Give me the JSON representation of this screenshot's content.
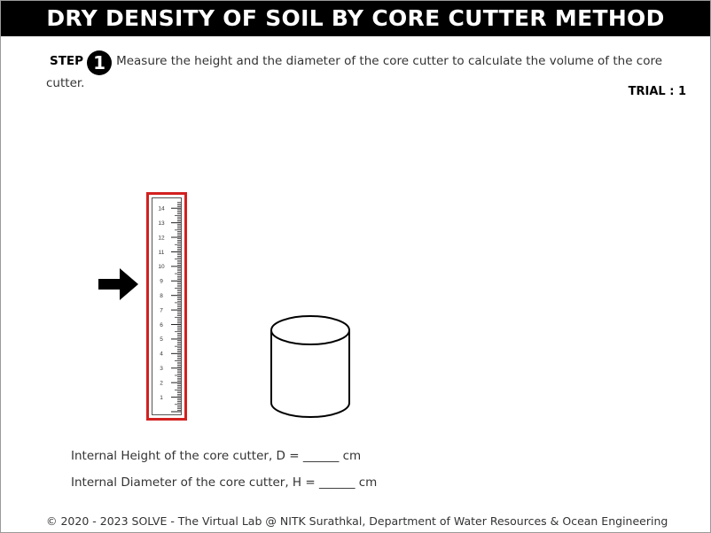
{
  "header": {
    "title": "DRY DENSITY OF SOIL BY CORE CUTTER METHOD"
  },
  "step": {
    "label": "STEP",
    "number": "1",
    "instruction": "Measure the height and the diameter of the core cutter to calculate the volume of the core cutter."
  },
  "trial": {
    "text": "TRIAL : 1"
  },
  "ruler": {
    "tick_labels": [
      "14",
      "13",
      "12",
      "11",
      "10",
      "9",
      "8",
      "7",
      "6",
      "5",
      "4",
      "3",
      "2",
      "1"
    ],
    "highlight_color": "#d32020",
    "selected": true
  },
  "pointer": {
    "icon": "right-arrow-icon"
  },
  "specimen": {
    "icon": "core-cutter-cylinder"
  },
  "results": {
    "height_text": "Internal Height of the core cutter, D = ______ cm",
    "diameter_text": "Internal Diameter of the core cutter, H = ______ cm"
  },
  "footer": {
    "text": "© 2020 - 2023 SOLVE - The Virtual Lab @ NITK Surathkal, Department of Water Resources & Ocean Engineering"
  }
}
